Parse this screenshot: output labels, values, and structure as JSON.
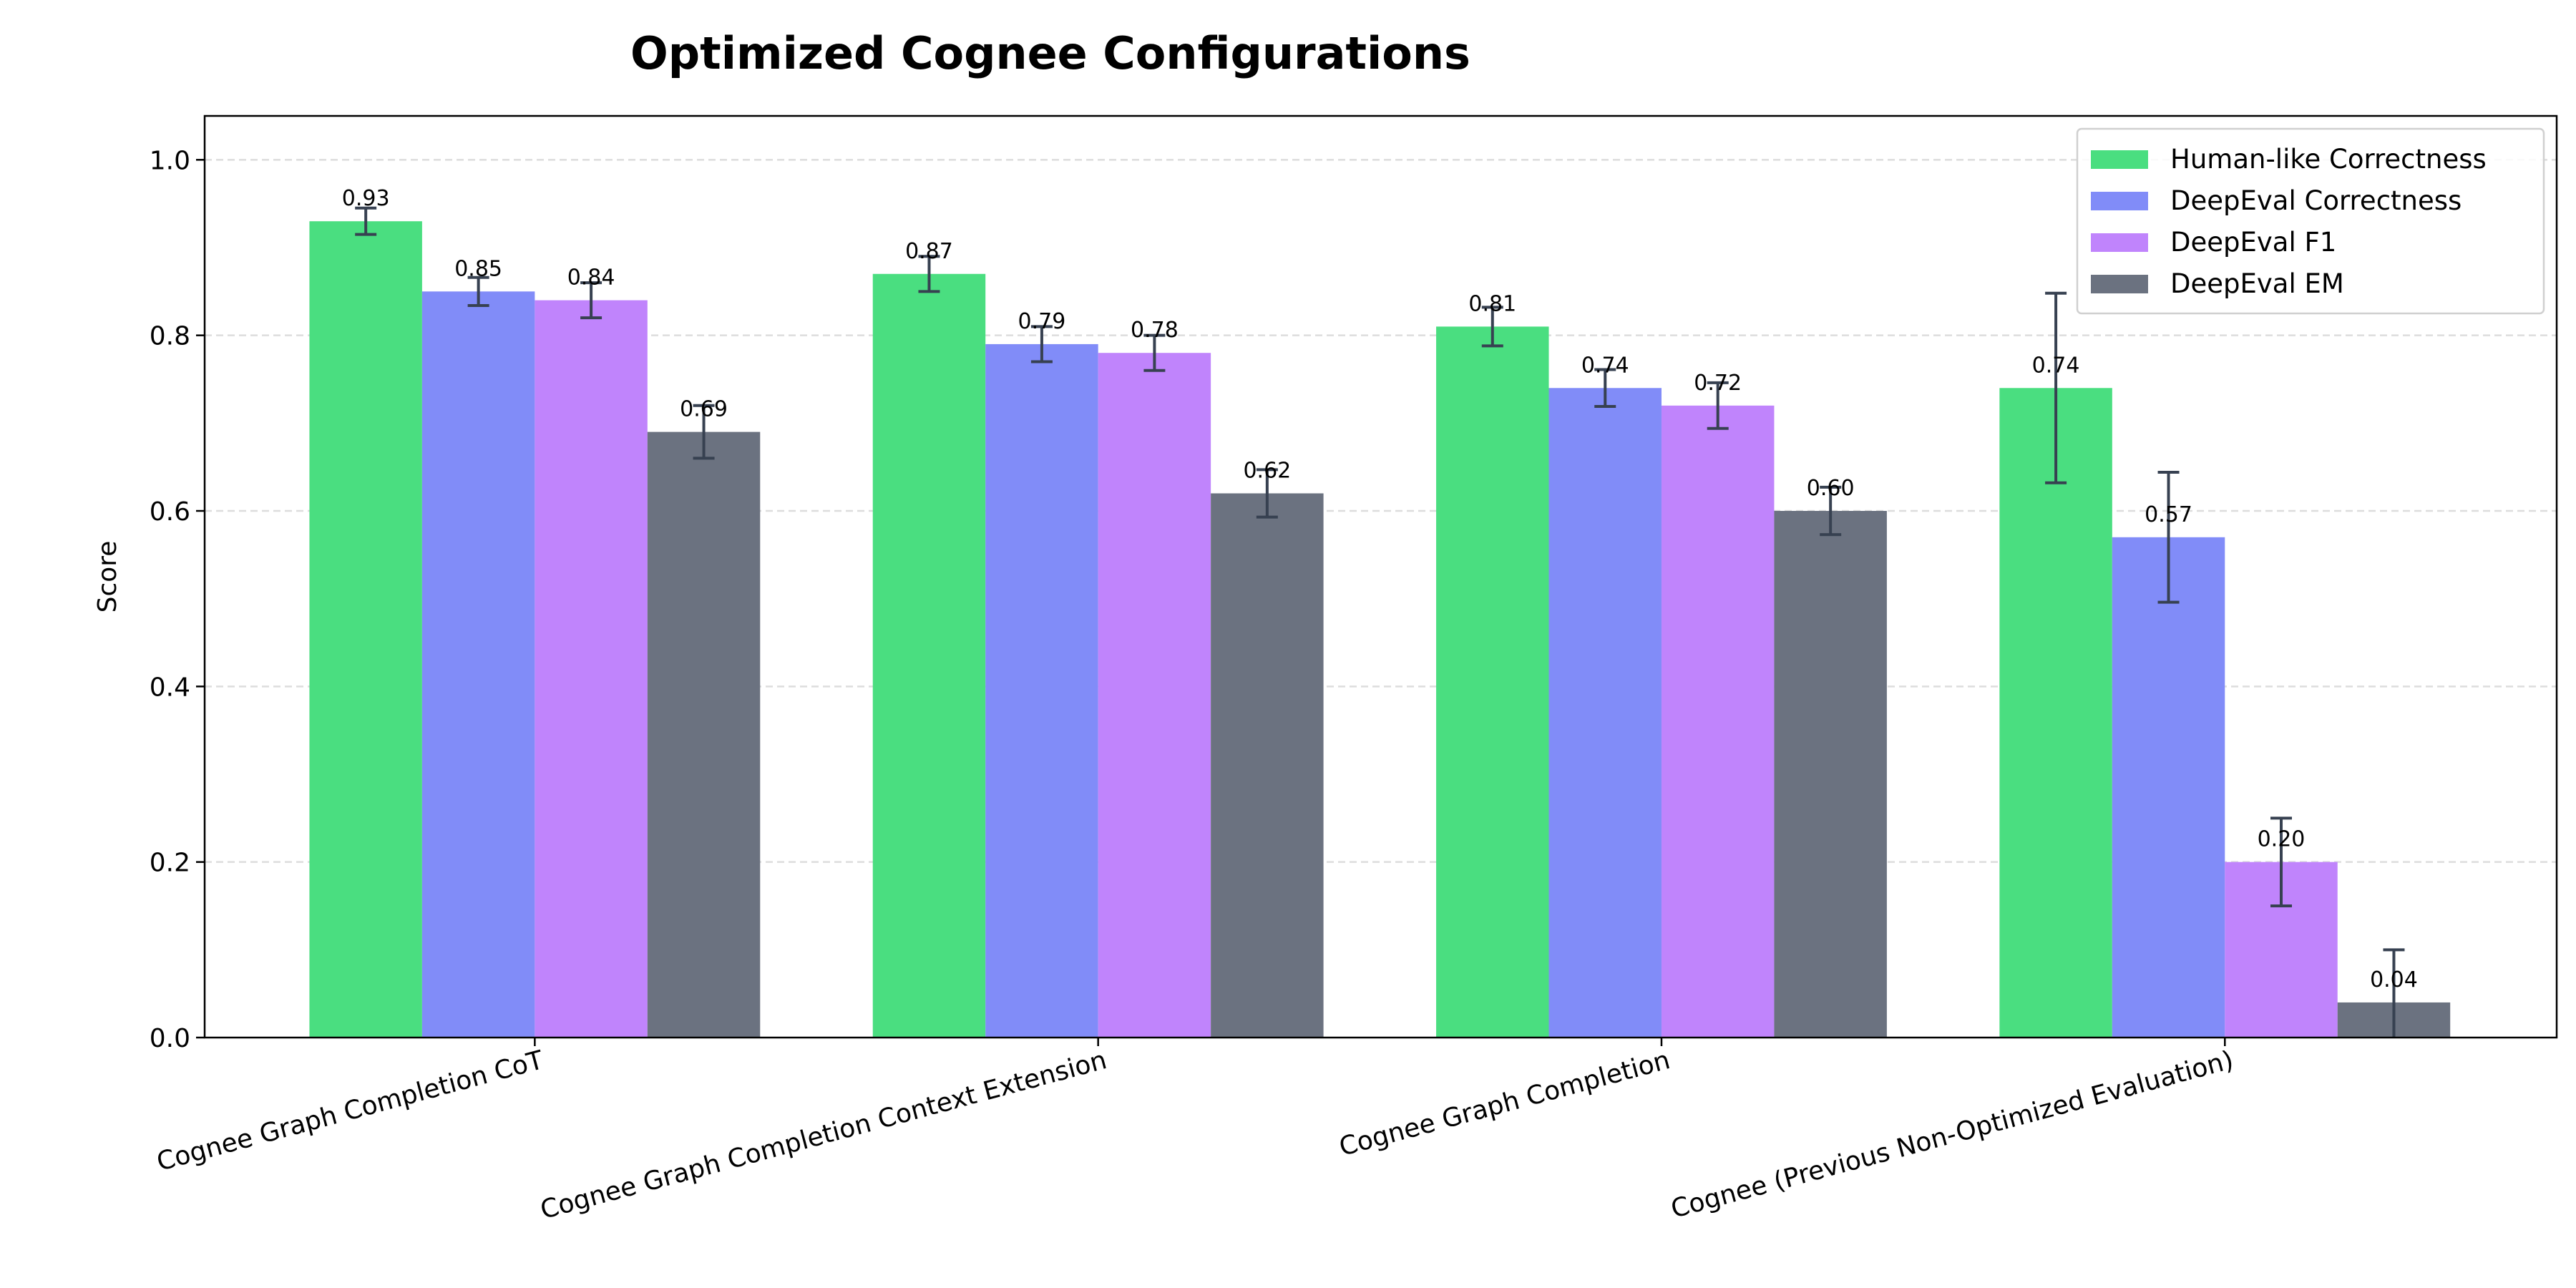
{
  "chart_data": {
    "type": "bar",
    "title": "Optimized Cognee Configurations",
    "xlabel": "",
    "ylabel": "Score",
    "ylim": [
      0,
      1.05
    ],
    "yticks": [
      "0.0",
      "0.2",
      "0.4",
      "0.6",
      "0.8",
      "1.0"
    ],
    "grid": "y, dashed",
    "legend_position": "top-right",
    "categories": [
      "Cognee Graph Completion CoT",
      "Cognee Graph Completion Context Extension",
      "Cognee Graph Completion",
      "Cognee (Previous Non-Optimized Evaluation)"
    ],
    "series": [
      {
        "name": "Human-like Correctness",
        "color": "#4ade80",
        "values": [
          0.93,
          0.87,
          0.81,
          0.74
        ],
        "errors": [
          0.015,
          0.02,
          0.022,
          0.108
        ],
        "labels": [
          "0.93",
          "0.87",
          "0.81",
          "0.74"
        ]
      },
      {
        "name": "DeepEval Correctness",
        "color": "#818cf8",
        "values": [
          0.85,
          0.79,
          0.74,
          0.57
        ],
        "errors": [
          0.016,
          0.02,
          0.021,
          0.074
        ],
        "labels": [
          "0.85",
          "0.79",
          "0.74",
          "0.57"
        ]
      },
      {
        "name": "DeepEval F1",
        "color": "#c084fc",
        "values": [
          0.84,
          0.78,
          0.72,
          0.2
        ],
        "errors": [
          0.02,
          0.02,
          0.026,
          0.05
        ],
        "labels": [
          "0.84",
          "0.78",
          "0.72",
          "0.20"
        ]
      },
      {
        "name": "DeepEval EM",
        "color": "#6b7280",
        "values": [
          0.69,
          0.62,
          0.6,
          0.04
        ],
        "errors": [
          0.03,
          0.027,
          0.027,
          0.06
        ],
        "labels": [
          "0.69",
          "0.62",
          "0.60",
          "0.04"
        ]
      }
    ],
    "error_bar_color": "#374151"
  }
}
